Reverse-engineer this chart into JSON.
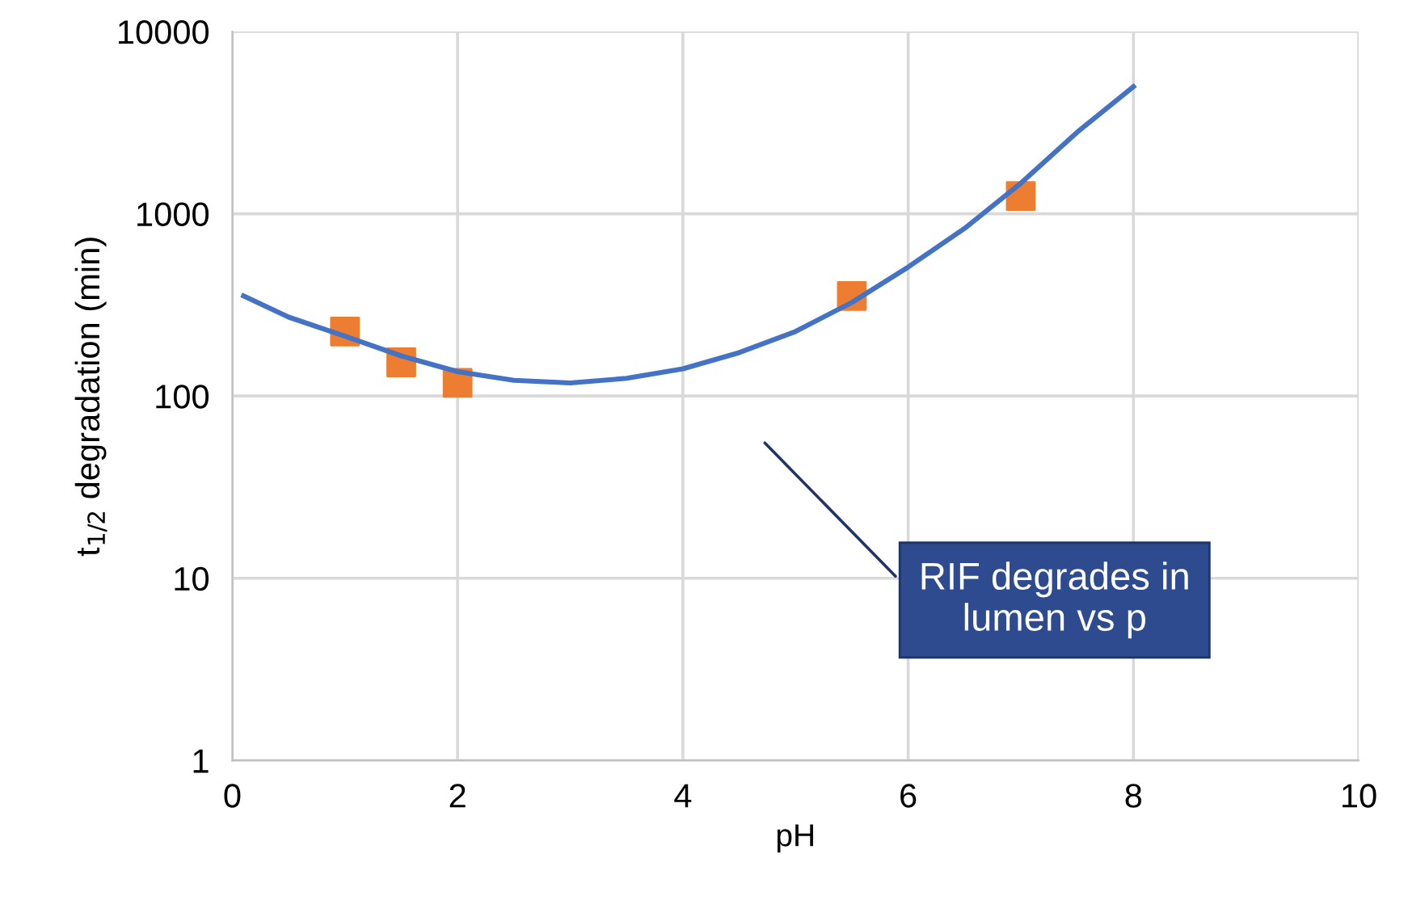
{
  "chart_data": {
    "type": "scatter",
    "xlabel": "pH",
    "ylabel": "t$_{1/2}$ degradation (min)",
    "log": "y",
    "grid": true,
    "legend": false,
    "xlim": [
      0,
      10
    ],
    "xticks": [
      0,
      2,
      4,
      6,
      8,
      10
    ],
    "ylim": [
      1,
      10000
    ],
    "yticks": [
      1,
      10,
      100,
      1000,
      10000
    ],
    "series": [
      {
        "color": "#ed7d31",
        "marker": "square",
        "x": [
          1,
          1.5,
          2,
          5.5,
          7
        ],
        "values": [
          226,
          153,
          118,
          354,
          1250
        ]
      },
      {
        "type": "line",
        "color": "#4472c4",
        "line_style": "solid",
        "x": [
          0.1,
          0.5,
          1,
          1.5,
          2,
          2.5,
          3,
          3.5,
          4,
          4.5,
          5,
          5.5,
          6,
          6.5,
          7,
          7.5,
          8
        ],
        "values": [
          354,
          271,
          213,
          166,
          136,
          122,
          118,
          125,
          141,
          173,
          226,
          326,
          510,
          830,
          1470,
          2800,
          4980
        ]
      }
    ],
    "annotations": [
      "RIF degrades in\nlumen vs p"
    ]
  }
}
